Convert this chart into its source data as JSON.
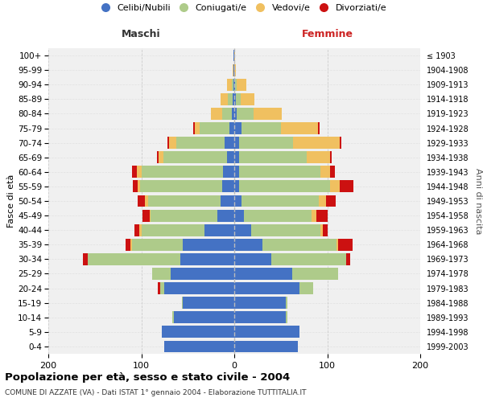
{
  "age_groups": [
    "0-4",
    "5-9",
    "10-14",
    "15-19",
    "20-24",
    "25-29",
    "30-34",
    "35-39",
    "40-44",
    "45-49",
    "50-54",
    "55-59",
    "60-64",
    "65-69",
    "70-74",
    "75-79",
    "80-84",
    "85-89",
    "90-94",
    "95-99",
    "100+"
  ],
  "birth_years": [
    "1999-2003",
    "1994-1998",
    "1989-1993",
    "1984-1988",
    "1979-1983",
    "1974-1978",
    "1969-1973",
    "1964-1968",
    "1959-1963",
    "1954-1958",
    "1949-1953",
    "1944-1948",
    "1939-1943",
    "1934-1938",
    "1929-1933",
    "1924-1928",
    "1919-1923",
    "1914-1918",
    "1909-1913",
    "1904-1908",
    "≤ 1903"
  ],
  "colors": {
    "celibi": "#4472C4",
    "coniugati": "#AECB8A",
    "vedovi": "#F0C060",
    "divorziati": "#CC1111"
  },
  "maschi": {
    "celibi": [
      75,
      78,
      65,
      55,
      75,
      68,
      58,
      55,
      32,
      18,
      15,
      13,
      12,
      8,
      10,
      5,
      3,
      2,
      1,
      1,
      1
    ],
    "coniugati": [
      0,
      0,
      2,
      1,
      5,
      20,
      100,
      55,
      68,
      72,
      78,
      88,
      88,
      68,
      52,
      32,
      10,
      5,
      2,
      0,
      0
    ],
    "vedovi": [
      0,
      0,
      0,
      0,
      0,
      0,
      0,
      2,
      2,
      1,
      3,
      3,
      5,
      5,
      8,
      5,
      12,
      8,
      5,
      1,
      0
    ],
    "divorziati": [
      0,
      0,
      0,
      0,
      2,
      0,
      5,
      5,
      5,
      8,
      8,
      5,
      5,
      2,
      2,
      2,
      0,
      0,
      0,
      0,
      0
    ]
  },
  "femmine": {
    "celibi": [
      68,
      70,
      55,
      55,
      70,
      62,
      40,
      30,
      18,
      10,
      8,
      5,
      5,
      5,
      5,
      8,
      3,
      2,
      1,
      0,
      0
    ],
    "coniugati": [
      0,
      0,
      2,
      2,
      15,
      50,
      80,
      80,
      75,
      73,
      83,
      98,
      88,
      73,
      58,
      42,
      18,
      5,
      2,
      0,
      0
    ],
    "vedovi": [
      0,
      0,
      0,
      0,
      0,
      0,
      0,
      2,
      2,
      5,
      8,
      10,
      10,
      25,
      50,
      40,
      30,
      15,
      10,
      2,
      1
    ],
    "divorziati": [
      0,
      0,
      0,
      0,
      0,
      0,
      5,
      15,
      5,
      12,
      10,
      15,
      5,
      2,
      2,
      2,
      0,
      0,
      0,
      0,
      0
    ]
  },
  "xlim": 200,
  "title": "Popolazione per età, sesso e stato civile - 2004",
  "subtitle": "COMUNE DI AZZATE (VA) - Dati ISTAT 1° gennaio 2004 - Elaborazione TUTTITALIA.IT",
  "ylabel_left": "Fasce di età",
  "ylabel_right": "Anni di nascita",
  "xlabel_left": "Maschi",
  "xlabel_right": "Femmine",
  "legend_labels": [
    "Celibi/Nubili",
    "Coniugati/e",
    "Vedovi/e",
    "Divorziati/e"
  ],
  "background_color": "#FFFFFF",
  "plot_bg_color": "#F0F0F0"
}
